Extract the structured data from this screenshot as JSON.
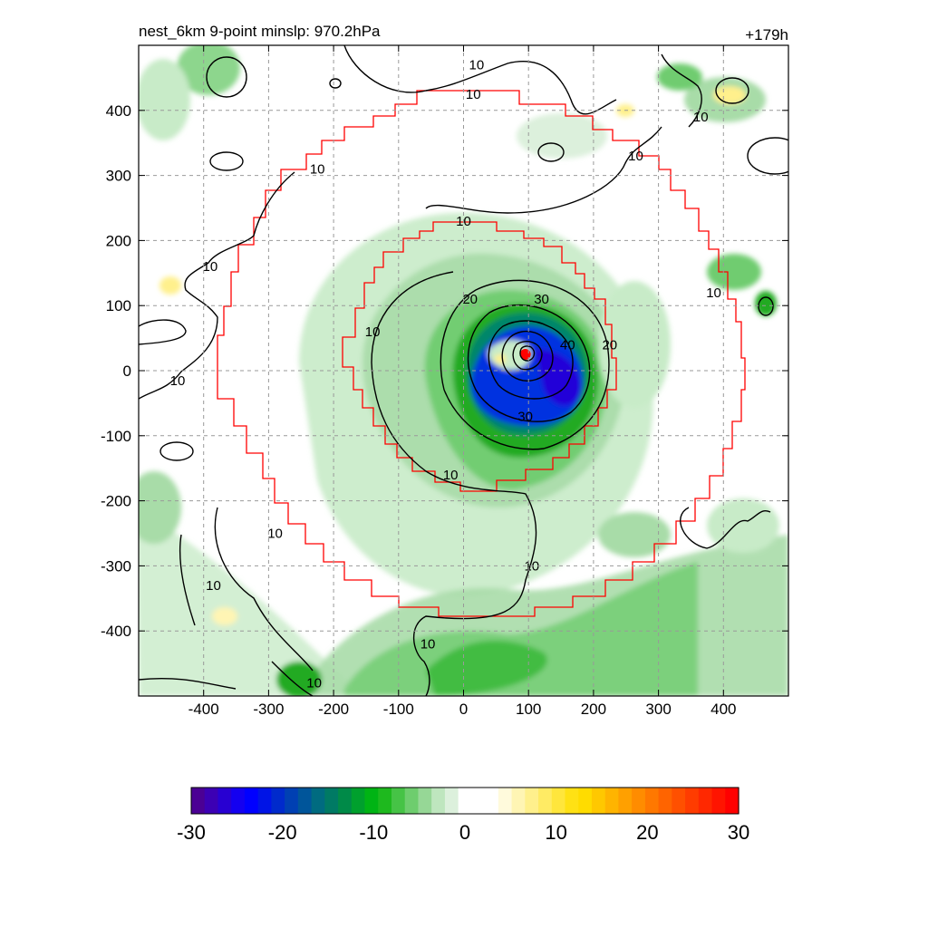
{
  "chart_data": {
    "type": "heatmap",
    "title_left": "nest_6km  9-point minslp: 970.2hPa",
    "title_right": "+179h",
    "xlim": [
      -500,
      500
    ],
    "ylim": [
      -500,
      500
    ],
    "x_ticks": [
      -400,
      -300,
      -200,
      -100,
      0,
      100,
      200,
      300,
      400
    ],
    "y_ticks": [
      -400,
      -300,
      -200,
      -100,
      0,
      100,
      200,
      300,
      400
    ],
    "grid": true,
    "colorbar": {
      "min": -30,
      "max": 30,
      "labels": [
        -30,
        -20,
        -10,
        0,
        10,
        20,
        30
      ],
      "colors": [
        "#4b0094",
        "#3c00b4",
        "#2800d2",
        "#1400f0",
        "#0000ff",
        "#0014e6",
        "#002acc",
        "#0040b3",
        "#00559a",
        "#006b80",
        "#007a64",
        "#008a48",
        "#00a02d",
        "#00b414",
        "#1eb91e",
        "#46c346",
        "#6ecd6e",
        "#96d796",
        "#bee6be",
        "#dcf0dc",
        "#ffffff",
        "#ffffff",
        "#ffffff",
        "#fffadc",
        "#fff5b4",
        "#fff08c",
        "#ffeb64",
        "#ffe63c",
        "#ffe114",
        "#ffdc00",
        "#ffc800",
        "#ffb400",
        "#ffa000",
        "#ff8c00",
        "#ff7800",
        "#ff6400",
        "#ff5000",
        "#ff3c00",
        "#ff2800",
        "#ff1400",
        "#ff0000"
      ]
    },
    "contour_labels": [
      {
        "text": "10",
        "x": 20,
        "y": 470
      },
      {
        "text": "10",
        "x": 15,
        "y": 425
      },
      {
        "text": "10",
        "x": -225,
        "y": 310
      },
      {
        "text": "10",
        "x": 265,
        "y": 330
      },
      {
        "text": "10",
        "x": 0,
        "y": 230
      },
      {
        "text": "10",
        "x": -390,
        "y": 160
      },
      {
        "text": "10",
        "x": 365,
        "y": 390
      },
      {
        "text": "10",
        "x": 385,
        "y": 120
      },
      {
        "text": "10",
        "x": -140,
        "y": 60
      },
      {
        "text": "10",
        "x": -440,
        "y": -15
      },
      {
        "text": "10",
        "x": -20,
        "y": -160
      },
      {
        "text": "10",
        "x": -290,
        "y": -250
      },
      {
        "text": "10",
        "x": 105,
        "y": -300
      },
      {
        "text": "10",
        "x": -385,
        "y": -330
      },
      {
        "text": "10",
        "x": -55,
        "y": -420
      },
      {
        "text": "10",
        "x": -230,
        "y": -480
      },
      {
        "text": "20",
        "x": 10,
        "y": 110
      },
      {
        "text": "20",
        "x": 225,
        "y": 40
      },
      {
        "text": "30",
        "x": 120,
        "y": 110
      },
      {
        "text": "30",
        "x": 95,
        "y": -70
      },
      {
        "text": "40",
        "x": 160,
        "y": 40
      }
    ],
    "center_max": {
      "x": 95,
      "y": 25
    }
  }
}
